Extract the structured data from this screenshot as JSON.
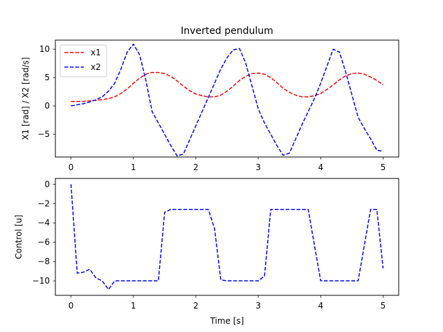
{
  "chart_data": [
    {
      "type": "line",
      "title": "Inverted pendulum",
      "xlabel": "",
      "ylabel": "X1 [rad] / X2 [rad/s]",
      "xlim": [
        -0.25,
        5.25
      ],
      "ylim": [
        -9.0,
        11.6
      ],
      "xticks": [
        0,
        1,
        2,
        3,
        4,
        5
      ],
      "yticks": [
        -5,
        0,
        5,
        10
      ],
      "grid": false,
      "legend": "upper-left",
      "x": [
        0,
        0.1,
        0.2,
        0.3,
        0.4,
        0.5,
        0.6,
        0.7,
        0.8,
        0.9,
        1.0,
        1.1,
        1.2,
        1.3,
        1.4,
        1.5,
        1.6,
        1.7,
        1.8,
        1.9,
        2.0,
        2.1,
        2.2,
        2.3,
        2.4,
        2.5,
        2.6,
        2.7,
        2.8,
        2.9,
        3.0,
        3.1,
        3.2,
        3.3,
        3.4,
        3.5,
        3.6,
        3.7,
        3.8,
        3.9,
        4.0,
        4.1,
        4.2,
        4.3,
        4.4,
        4.5,
        4.6,
        4.7,
        4.8,
        4.9,
        5.0
      ],
      "series": [
        {
          "name": "x1",
          "color": "#ff0000",
          "style": "dashed",
          "values": [
            0.8,
            0.8,
            0.8,
            0.9,
            1.0,
            1.1,
            1.3,
            1.6,
            2.2,
            3.0,
            4.0,
            4.9,
            5.6,
            5.9,
            5.9,
            5.7,
            5.2,
            4.4,
            3.5,
            2.7,
            2.1,
            1.8,
            1.6,
            1.6,
            1.9,
            2.6,
            3.5,
            4.5,
            5.2,
            5.7,
            5.8,
            5.6,
            5.0,
            4.1,
            3.1,
            2.4,
            1.9,
            1.6,
            1.6,
            1.8,
            2.2,
            2.9,
            3.7,
            4.6,
            5.3,
            5.7,
            5.8,
            5.6,
            5.1,
            4.5,
            3.7
          ]
        },
        {
          "name": "x2",
          "color": "#0000ff",
          "style": "dashed",
          "values": [
            0.0,
            0.2,
            0.4,
            0.7,
            1.1,
            1.6,
            2.6,
            4.0,
            6.5,
            9.5,
            10.9,
            9.0,
            4.5,
            -1.0,
            -3.0,
            -5.0,
            -7.0,
            -8.8,
            -8.5,
            -6.0,
            -3.5,
            -1.0,
            1.5,
            4.0,
            6.5,
            8.5,
            9.9,
            10.1,
            7.5,
            3.5,
            -0.5,
            -3.0,
            -5.0,
            -7.0,
            -8.7,
            -8.3,
            -5.8,
            -3.3,
            -1.0,
            1.3,
            4.0,
            7.0,
            10.0,
            9.5,
            6.0,
            2.0,
            -2.0,
            -4.0,
            -5.8,
            -7.8,
            -8.0
          ]
        }
      ]
    },
    {
      "type": "line",
      "title": "",
      "xlabel": "Time [s]",
      "ylabel": "Control [u]",
      "xlim": [
        -0.25,
        5.25
      ],
      "ylim": [
        -11.5,
        0.6
      ],
      "xticks": [
        0,
        1,
        2,
        3,
        4,
        5
      ],
      "yticks": [
        0,
        -2,
        -4,
        -6,
        -8,
        -10
      ],
      "grid": false,
      "x": [
        0,
        0.1,
        0.2,
        0.3,
        0.4,
        0.5,
        0.6,
        0.7,
        0.8,
        0.9,
        1.0,
        1.1,
        1.2,
        1.3,
        1.4,
        1.5,
        1.6,
        1.7,
        1.8,
        1.9,
        2.0,
        2.1,
        2.2,
        2.3,
        2.4,
        2.5,
        2.6,
        2.7,
        2.8,
        2.9,
        3.0,
        3.1,
        3.2,
        3.3,
        3.4,
        3.5,
        3.6,
        3.7,
        3.8,
        3.9,
        4.0,
        4.1,
        4.2,
        4.3,
        4.4,
        4.5,
        4.6,
        4.7,
        4.8,
        4.9,
        5.0
      ],
      "series": [
        {
          "name": "",
          "color": "#0000ff",
          "style": "dashed",
          "values": [
            0.0,
            -9.2,
            -9.1,
            -8.8,
            -9.7,
            -10.0,
            -10.9,
            -10.0,
            -10.0,
            -10.0,
            -10.0,
            -10.0,
            -10.0,
            -10.0,
            -10.0,
            -2.9,
            -2.6,
            -2.6,
            -2.6,
            -2.6,
            -2.6,
            -2.6,
            -2.6,
            -4.6,
            -9.9,
            -10.0,
            -10.0,
            -10.0,
            -10.0,
            -10.0,
            -10.0,
            -9.5,
            -2.6,
            -2.6,
            -2.6,
            -2.6,
            -2.6,
            -2.6,
            -2.6,
            -6.3,
            -10.0,
            -10.0,
            -10.0,
            -10.0,
            -10.0,
            -10.0,
            -10.0,
            -6.3,
            -2.6,
            -2.6,
            -8.7
          ]
        }
      ]
    }
  ]
}
